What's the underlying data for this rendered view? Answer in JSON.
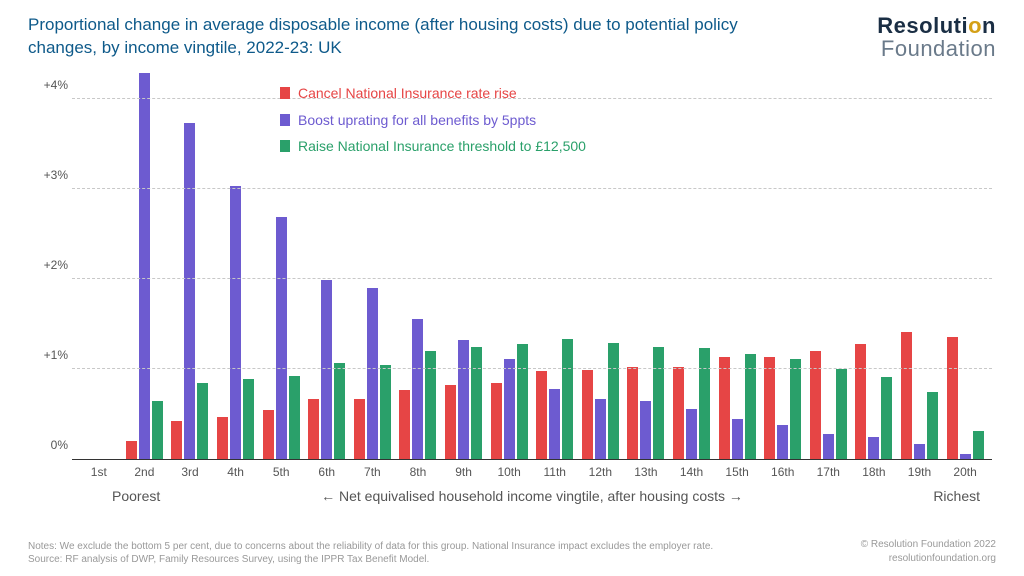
{
  "title": "Proportional change in average disposable income (after housing costs) due to potential policy changes, by income vingtile, 2022-23: UK",
  "logo": {
    "line1_a": "Resoluti",
    "line1_b": "o",
    "line1_c": "n",
    "line2": "Foundation"
  },
  "chart": {
    "type": "bar",
    "ymax_pct": 4.35,
    "yticks": [
      {
        "v": 0,
        "label": "0%"
      },
      {
        "v": 1,
        "label": "+1%"
      },
      {
        "v": 2,
        "label": "+2%"
      },
      {
        "v": 3,
        "label": "+3%"
      },
      {
        "v": 4,
        "label": "+4%"
      }
    ],
    "categories": [
      "1st",
      "2nd",
      "3rd",
      "4th",
      "5th",
      "6th",
      "7th",
      "8th",
      "9th",
      "10th",
      "11th",
      "12th",
      "13th",
      "14th",
      "15th",
      "16th",
      "17th",
      "18th",
      "19th",
      "20th"
    ],
    "series": [
      {
        "key": "cancel_ni",
        "label": "Cancel National Insurance rate rise",
        "color": "#e64545",
        "values": [
          null,
          0.2,
          0.42,
          0.47,
          0.55,
          0.67,
          0.67,
          0.77,
          0.82,
          0.85,
          0.98,
          0.99,
          1.02,
          1.02,
          1.14,
          1.14,
          1.2,
          1.28,
          1.41,
          1.36
        ]
      },
      {
        "key": "boost_uprating",
        "label": "Boost uprating for all benefits by 5ppts",
        "color": "#6d5bd0",
        "values": [
          null,
          4.3,
          3.74,
          3.04,
          2.69,
          1.99,
          1.9,
          1.56,
          1.32,
          1.11,
          0.78,
          0.67,
          0.65,
          0.56,
          0.44,
          0.38,
          0.28,
          0.24,
          0.17,
          0.06
        ]
      },
      {
        "key": "raise_threshold",
        "label": "Raise National Insurance threshold to £12,500",
        "color": "#2aa06a",
        "values": [
          null,
          0.64,
          0.85,
          0.89,
          0.92,
          1.07,
          1.05,
          1.2,
          1.25,
          1.28,
          1.33,
          1.29,
          1.25,
          1.23,
          1.17,
          1.11,
          1.0,
          0.91,
          0.75,
          0.31
        ]
      }
    ],
    "xlabel_poor": "Poorest",
    "xlabel_mid": "←    Net equivalised household income vingtile, after housing costs    →",
    "xlabel_rich": "Richest",
    "background_color": "#ffffff",
    "grid_color": "#c8c8c8",
    "axis_color": "#333333",
    "tick_fontsize": 12,
    "label_fontsize": 14
  },
  "footer": {
    "notes_line1": "Notes: We exclude the bottom 5 per cent, due to concerns about the reliability of data for this group. National Insurance impact excludes the employer rate.",
    "notes_line2": "Source: RF analysis of DWP, Family Resources Survey, using the IPPR Tax Benefit Model.",
    "copyright": "© Resolution Foundation 2022",
    "url": "resolutionfoundation.org"
  }
}
